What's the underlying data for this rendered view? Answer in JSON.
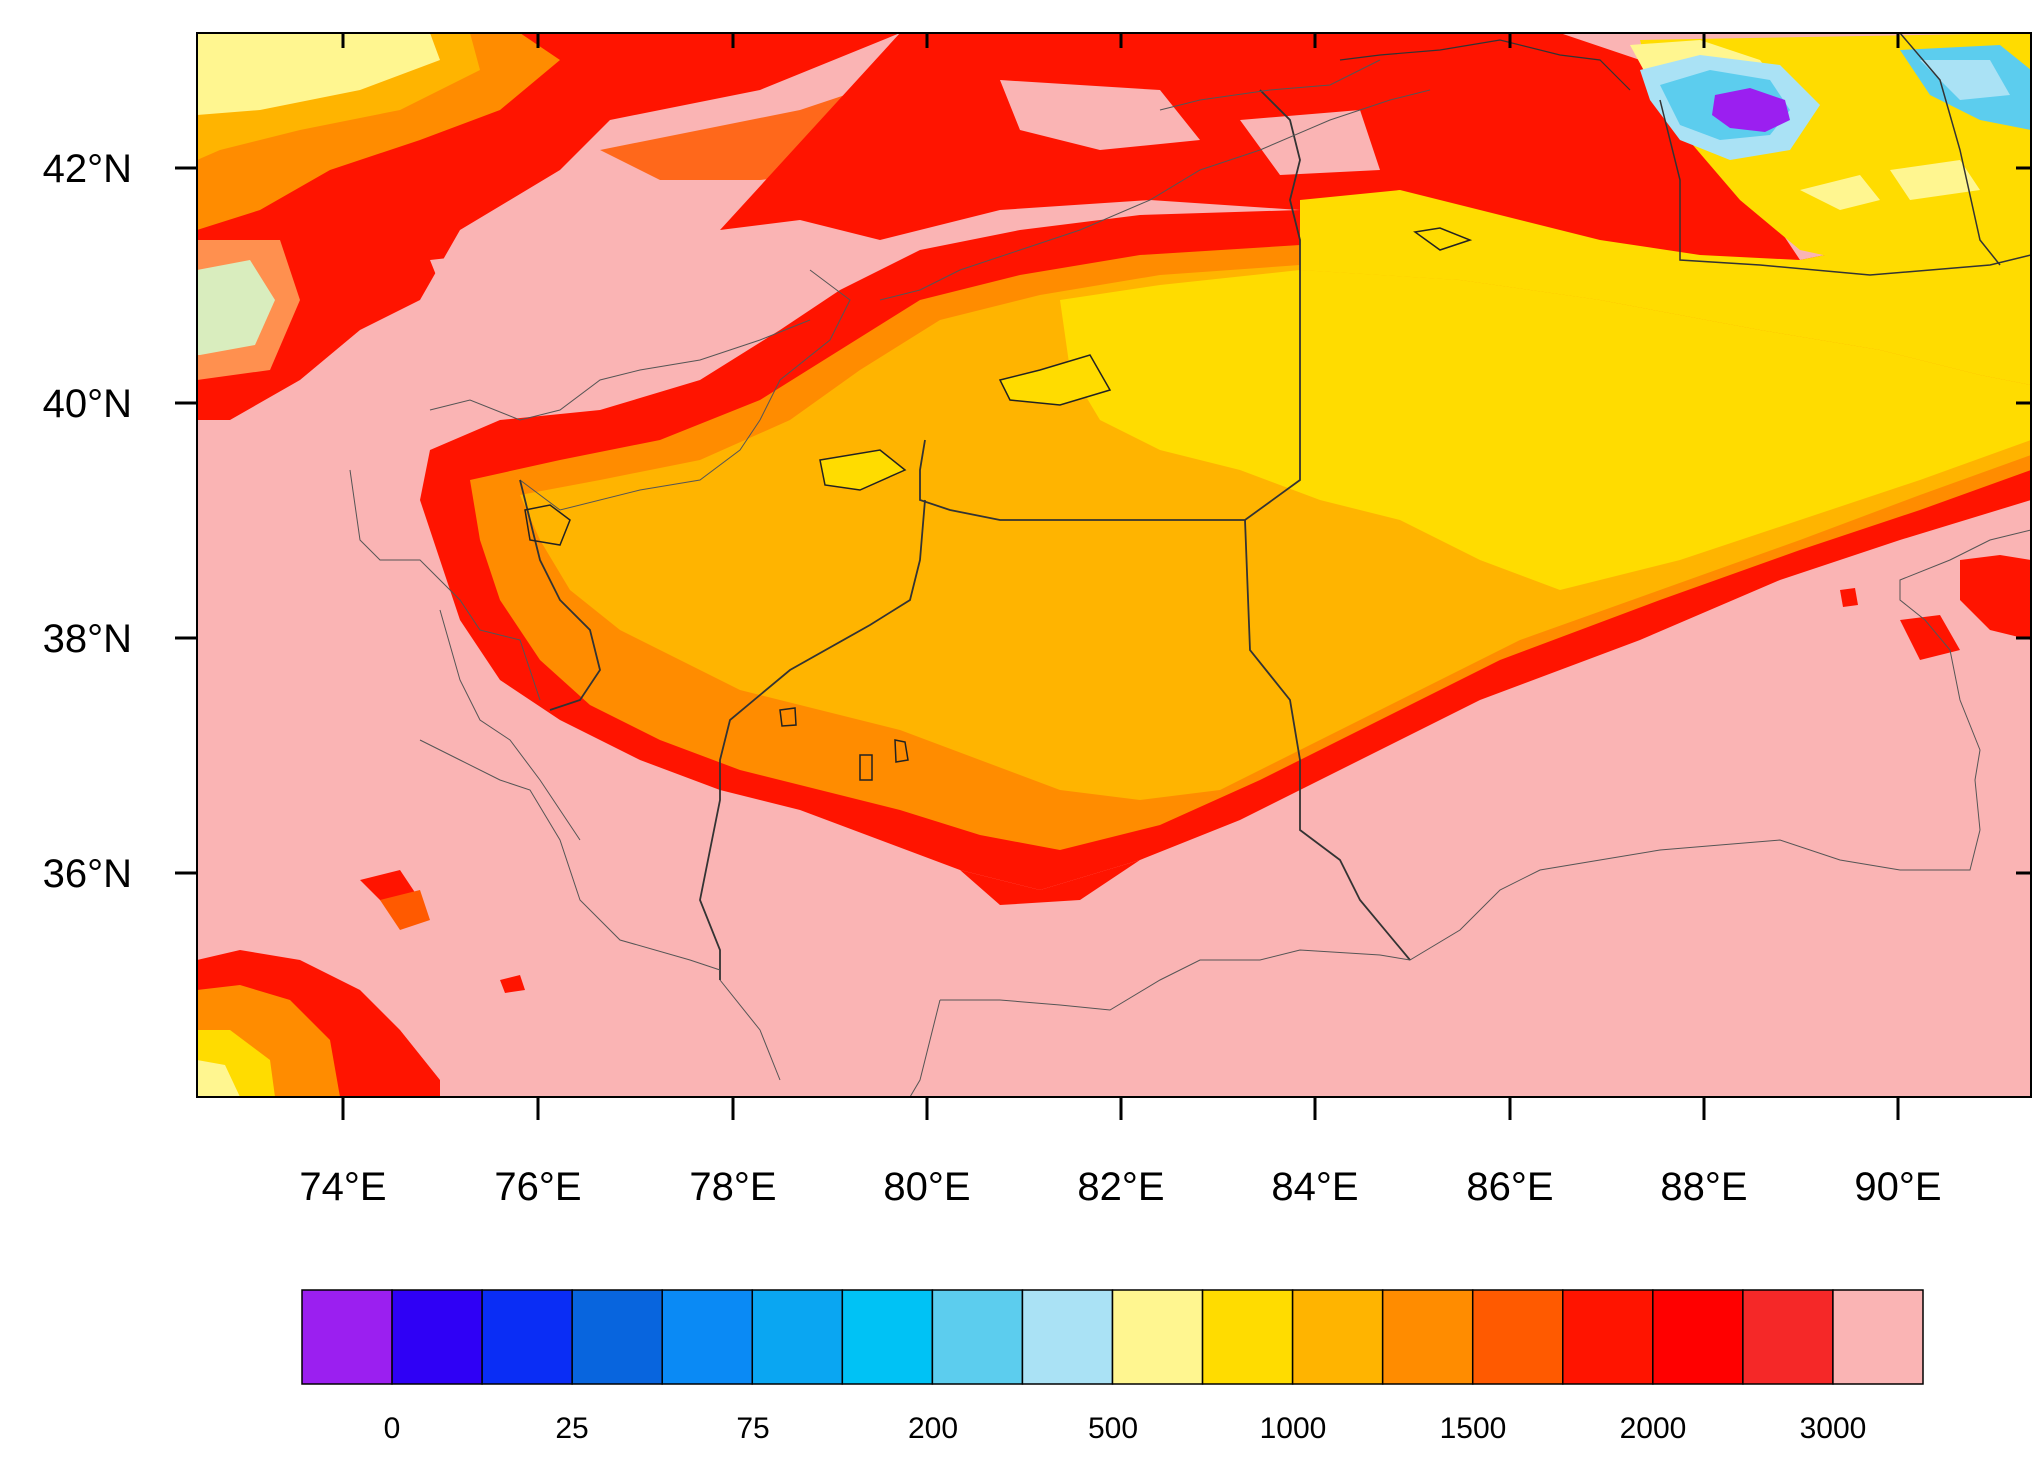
{
  "map": {
    "lon_ticks": [
      "74°E",
      "76°E",
      "78°E",
      "80°E",
      "82°E",
      "84°E",
      "86°E",
      "88°E",
      "90°E"
    ],
    "lat_ticks": [
      "42°N",
      "40°N",
      "38°N",
      "36°N"
    ]
  },
  "colorbar": {
    "colors": [
      "#9b1ff0",
      "#2f00f5",
      "#0a2df5",
      "#0865de",
      "#0a8af5",
      "#0aa6f2",
      "#00c2f5",
      "#5ccdee",
      "#aae2f5",
      "#fff690",
      "#ffdc00",
      "#ffb400",
      "#ff8c00",
      "#ff5a00",
      "#ff1400",
      "#ff0000",
      "#f52828",
      "#fab4b4"
    ],
    "labels": [
      "0",
      "25",
      "75",
      "200",
      "500",
      "1000",
      "1500",
      "2000",
      "3000"
    ]
  }
}
